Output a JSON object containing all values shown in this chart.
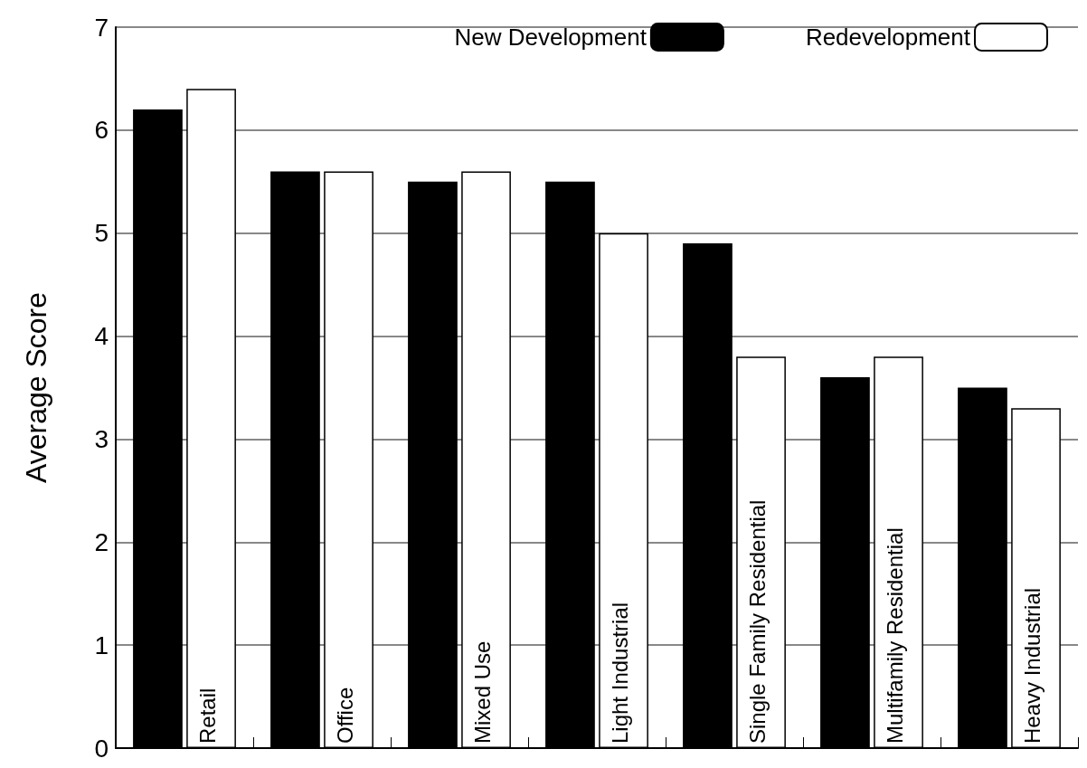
{
  "chart_data": {
    "type": "bar",
    "ylabel": "Average Score",
    "categories": [
      "Retail",
      "Office",
      "Mixed Use",
      "Light Industrial",
      "Single Family Residential",
      "Multifamily Residential",
      "Heavy Industrial"
    ],
    "series": [
      {
        "name": "New Development",
        "color": "#000000",
        "values": [
          6.2,
          5.6,
          5.5,
          5.5,
          4.9,
          3.6,
          3.5
        ]
      },
      {
        "name": "Redevelopment",
        "color": "#ffffff",
        "values": [
          6.4,
          5.6,
          5.6,
          5.0,
          3.8,
          3.8,
          3.3
        ]
      }
    ],
    "ylim": [
      0,
      7
    ],
    "yticks": [
      0,
      1,
      2,
      3,
      4,
      5,
      6,
      7
    ],
    "grid": "y",
    "legend": "top right"
  }
}
